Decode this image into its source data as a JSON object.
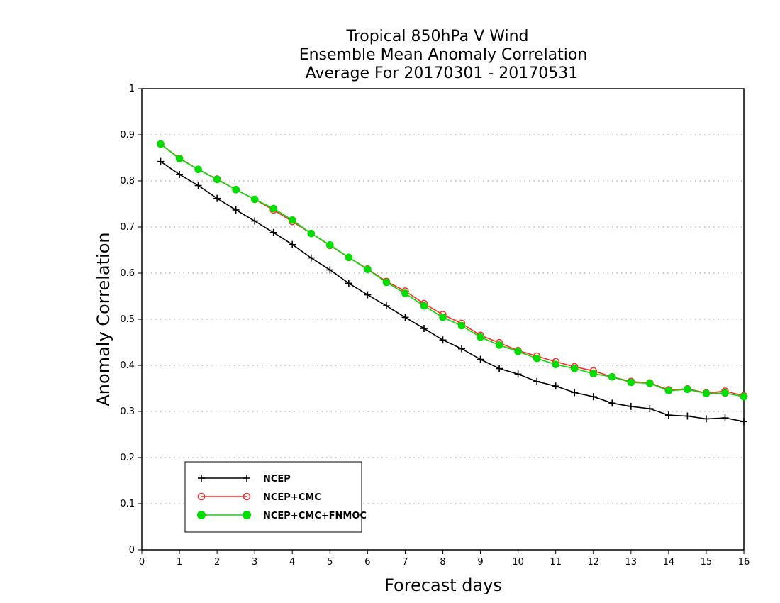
{
  "chart_data": {
    "type": "line",
    "title": [
      "Tropical 850hPa V Wind",
      "Ensemble Mean Anomaly Correlation",
      "Average For 20170301 - 20170531"
    ],
    "xlabel": "Forecast days",
    "ylabel": "Anomaly Correlation",
    "xlim": [
      0,
      16
    ],
    "ylim": [
      0,
      1
    ],
    "xticks": [
      "0",
      "1",
      "2",
      "3",
      "4",
      "5",
      "6",
      "7",
      "8",
      "9",
      "10",
      "11",
      "12",
      "13",
      "14",
      "15",
      "16"
    ],
    "yticks": [
      "0",
      "0.1",
      "0.2",
      "0.3",
      "0.4",
      "0.5",
      "0.6",
      "0.7",
      "0.8",
      "0.9",
      "1"
    ],
    "grid": "horizontal dotted",
    "legend_position": "bottom-left",
    "x": [
      0.5,
      1,
      1.5,
      2,
      2.5,
      3,
      3.5,
      4,
      4.5,
      5,
      5.5,
      6,
      6.5,
      7,
      7.5,
      8,
      8.5,
      9,
      9.5,
      10,
      10.5,
      11,
      11.5,
      12,
      12.5,
      13,
      13.5,
      14,
      14.5,
      15,
      15.5,
      16
    ],
    "series": [
      {
        "name": "NCEP",
        "color": "#000000",
        "marker": "plus",
        "values": [
          0.842,
          0.814,
          0.79,
          0.762,
          0.737,
          0.713,
          0.688,
          0.662,
          0.633,
          0.607,
          0.578,
          0.553,
          0.529,
          0.504,
          0.48,
          0.455,
          0.436,
          0.413,
          0.393,
          0.381,
          0.365,
          0.355,
          0.341,
          0.332,
          0.318,
          0.311,
          0.306,
          0.292,
          0.29,
          0.284,
          0.286,
          0.278
        ]
      },
      {
        "name": "NCEP+CMC",
        "color": "#ff2a2a",
        "marker": "open-circle",
        "values": [
          0.88,
          0.849,
          0.825,
          0.804,
          0.781,
          0.76,
          0.737,
          0.712,
          0.686,
          0.66,
          0.634,
          0.609,
          0.582,
          0.561,
          0.534,
          0.51,
          0.491,
          0.465,
          0.449,
          0.432,
          0.42,
          0.408,
          0.397,
          0.388,
          0.375,
          0.365,
          0.362,
          0.347,
          0.349,
          0.34,
          0.344,
          0.334
        ]
      },
      {
        "name": "NCEP+CMC+FNMOC",
        "color": "#00dd00",
        "marker": "filled-circle",
        "values": [
          0.88,
          0.848,
          0.825,
          0.803,
          0.781,
          0.76,
          0.74,
          0.715,
          0.686,
          0.661,
          0.634,
          0.608,
          0.58,
          0.556,
          0.529,
          0.504,
          0.486,
          0.461,
          0.444,
          0.43,
          0.415,
          0.402,
          0.393,
          0.382,
          0.375,
          0.363,
          0.361,
          0.345,
          0.348,
          0.339,
          0.34,
          0.332
        ]
      }
    ]
  }
}
